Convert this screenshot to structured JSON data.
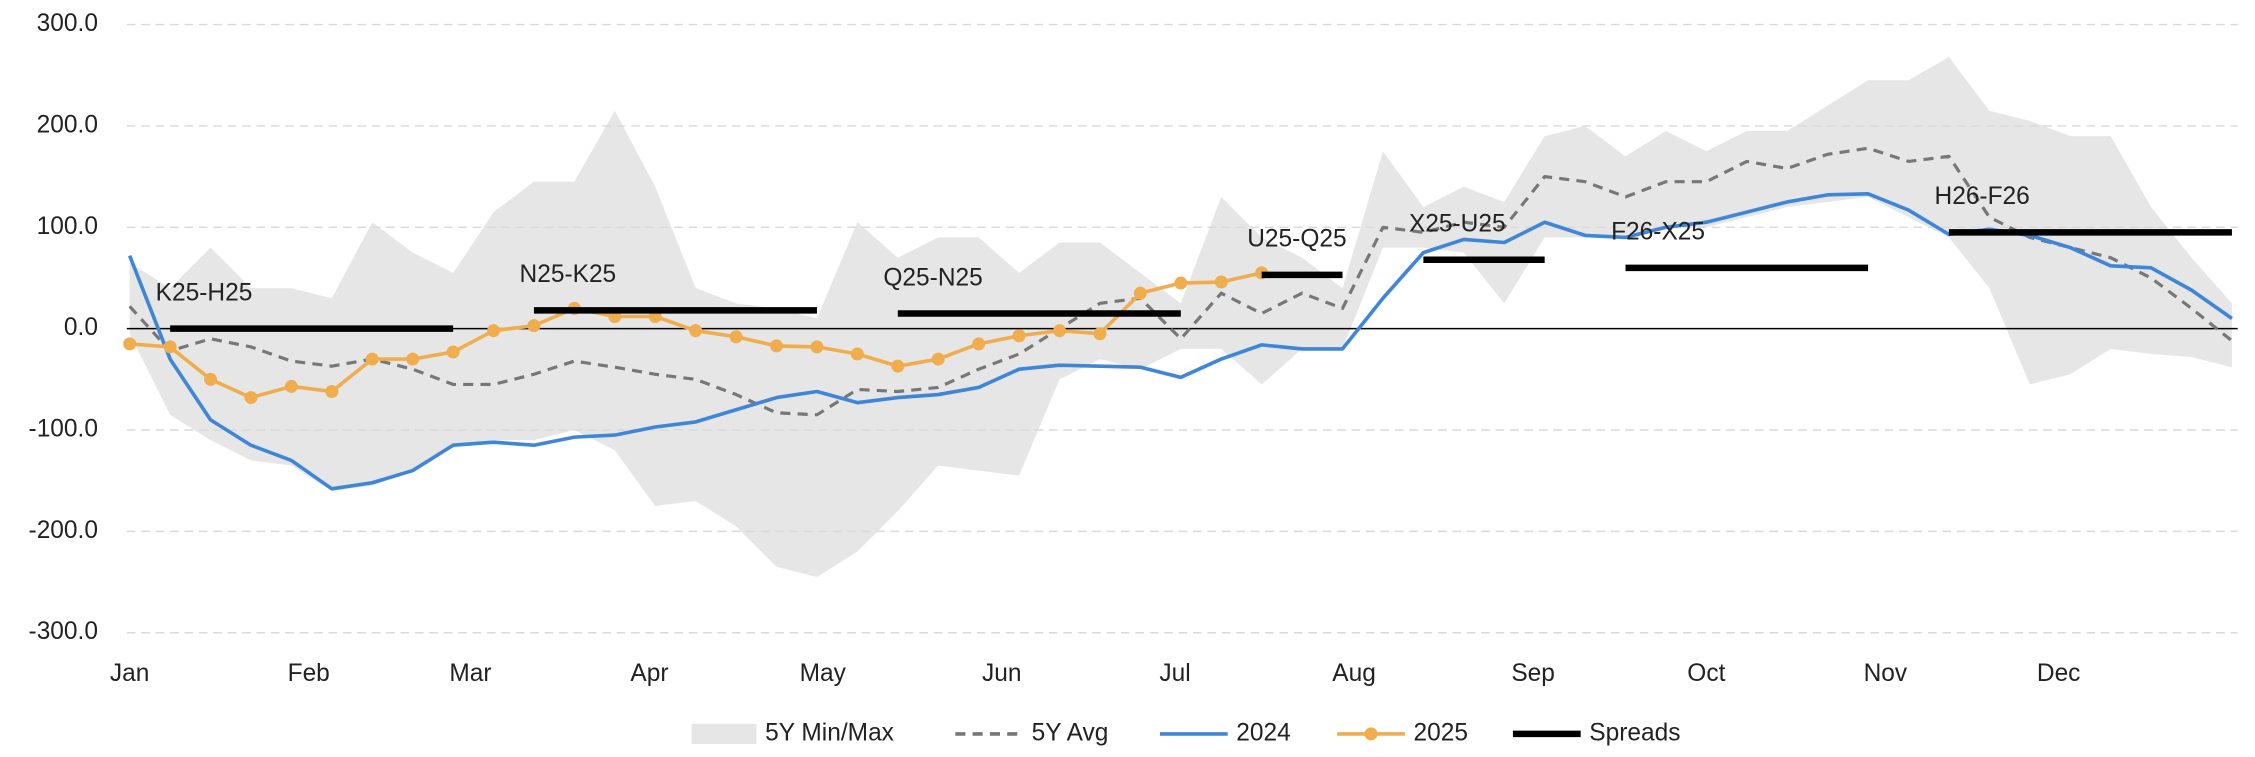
{
  "chart_data": {
    "type": "line",
    "x": [
      0,
      7,
      14,
      21,
      28,
      35,
      42,
      49,
      56,
      63,
      70,
      77,
      84,
      91,
      98,
      105,
      112,
      119,
      126,
      133,
      140,
      147,
      154,
      161,
      168,
      175,
      182,
      189,
      196,
      203,
      210,
      217,
      224,
      231,
      238,
      245,
      252,
      259,
      266,
      273,
      280,
      287,
      294,
      301,
      308,
      315,
      322,
      329,
      336,
      343,
      350,
      357,
      364
    ],
    "xlim": [
      0,
      365
    ],
    "xticks": [
      {
        "value": 0,
        "label": "Jan"
      },
      {
        "value": 31,
        "label": "Feb"
      },
      {
        "value": 59,
        "label": "Mar"
      },
      {
        "value": 90,
        "label": "Apr"
      },
      {
        "value": 120,
        "label": "May"
      },
      {
        "value": 151,
        "label": "Jun"
      },
      {
        "value": 181,
        "label": "Jul"
      },
      {
        "value": 212,
        "label": "Aug"
      },
      {
        "value": 243,
        "label": "Sep"
      },
      {
        "value": 273,
        "label": "Oct"
      },
      {
        "value": 304,
        "label": "Nov"
      },
      {
        "value": 334,
        "label": "Dec"
      }
    ],
    "ylim": [
      -300,
      300
    ],
    "yticks": [
      {
        "value": -300,
        "label": "-300.0"
      },
      {
        "value": -200,
        "label": "-200.0"
      },
      {
        "value": -100,
        "label": "-100.0"
      },
      {
        "value": 0,
        "label": "0.0"
      },
      {
        "value": 100,
        "label": "100.0"
      },
      {
        "value": 200,
        "label": "200.0"
      },
      {
        "value": 300,
        "label": "300.0"
      }
    ],
    "grid": true,
    "legend": "bottom",
    "series": [
      {
        "name": "5Y Min/Max",
        "kind": "band",
        "color": "#e6e6e6",
        "values": [
          65,
          40,
          80,
          40,
          40,
          30,
          105,
          75,
          55,
          115,
          145,
          145,
          215,
          140,
          40,
          25,
          20,
          10,
          105,
          70,
          90,
          90,
          55,
          85,
          85,
          55,
          25,
          130,
          90,
          70,
          40,
          175,
          120,
          140,
          125,
          190,
          200,
          170,
          195,
          175,
          195,
          195,
          220,
          245,
          245,
          268,
          215,
          205,
          190,
          190,
          120,
          70,
          25
        ],
        "low": [
          -5,
          -85,
          -110,
          -130,
          -135,
          -160,
          -155,
          -140,
          -115,
          -110,
          -110,
          -100,
          -120,
          -175,
          -170,
          -195,
          -235,
          -245,
          -220,
          -180,
          -135,
          -140,
          -145,
          -50,
          -30,
          -40,
          -20,
          -20,
          -55,
          -20,
          -20,
          80,
          80,
          75,
          25,
          90,
          90,
          90,
          100,
          100,
          110,
          120,
          125,
          130,
          110,
          90,
          40,
          -55,
          -45,
          -20,
          -25,
          -28,
          -38
        ]
      },
      {
        "name": "5Y Avg",
        "kind": "dashed",
        "color": "#777777",
        "values": [
          22,
          -22,
          -10,
          -18,
          -32,
          -37,
          -30,
          -40,
          -55,
          -55,
          -45,
          -32,
          -38,
          -45,
          -50,
          -65,
          -83,
          -85,
          -60,
          -62,
          -58,
          -40,
          -25,
          0,
          25,
          30,
          -10,
          35,
          15,
          35,
          20,
          100,
          95,
          105,
          100,
          150,
          145,
          130,
          145,
          145,
          165,
          158,
          172,
          178,
          165,
          170,
          110,
          90,
          80,
          70,
          50,
          20,
          -12
        ]
      },
      {
        "name": "2024",
        "kind": "line",
        "color": "#3f86d8",
        "values": [
          72,
          -30,
          -90,
          -115,
          -130,
          -158,
          -152,
          -140,
          -115,
          -112,
          -115,
          -107,
          -105,
          -97,
          -92,
          -80,
          -68,
          -62,
          -73,
          -68,
          -65,
          -58,
          -40,
          -36,
          -37,
          -38,
          -48,
          -30,
          -16,
          -20,
          -20,
          30,
          75,
          88,
          85,
          105,
          92,
          90,
          100,
          105,
          115,
          125,
          132,
          133,
          117,
          93,
          98,
          92,
          80,
          62,
          60,
          38,
          10
        ]
      },
      {
        "name": "2025",
        "kind": "markers",
        "color": "#f0ad4e",
        "values": [
          -15,
          -18,
          -50,
          -68,
          -57,
          -62,
          -30,
          -30,
          -23,
          -2,
          3,
          20,
          12,
          12,
          -2,
          -8,
          -17,
          -18,
          -25,
          -37,
          -30,
          -15,
          -7,
          -2,
          -5,
          35,
          45,
          46,
          55,
          null,
          null,
          null,
          null,
          null,
          null,
          null,
          null,
          null,
          null,
          null,
          null,
          null,
          null,
          null,
          null,
          null,
          null,
          null,
          null,
          null,
          null,
          null,
          null
        ]
      }
    ],
    "spreads": {
      "name": "Spreads",
      "color": "#000000",
      "items": [
        {
          "label": "K25-H25",
          "x": [
            7,
            56
          ],
          "value": 0
        },
        {
          "label": "N25-K25",
          "x": [
            70,
            119
          ],
          "value": 18
        },
        {
          "label": "Q25-N25",
          "x": [
            133,
            182
          ],
          "value": 15
        },
        {
          "label": "U25-Q25",
          "x": [
            196,
            210
          ],
          "value": 53
        },
        {
          "label": "X25-U25",
          "x": [
            224,
            245
          ],
          "value": 68
        },
        {
          "label": "F26-X25",
          "x": [
            259,
            301
          ],
          "value": 60
        },
        {
          "label": "H26-F26",
          "x": [
            315,
            364
          ],
          "value": 95
        }
      ]
    }
  }
}
